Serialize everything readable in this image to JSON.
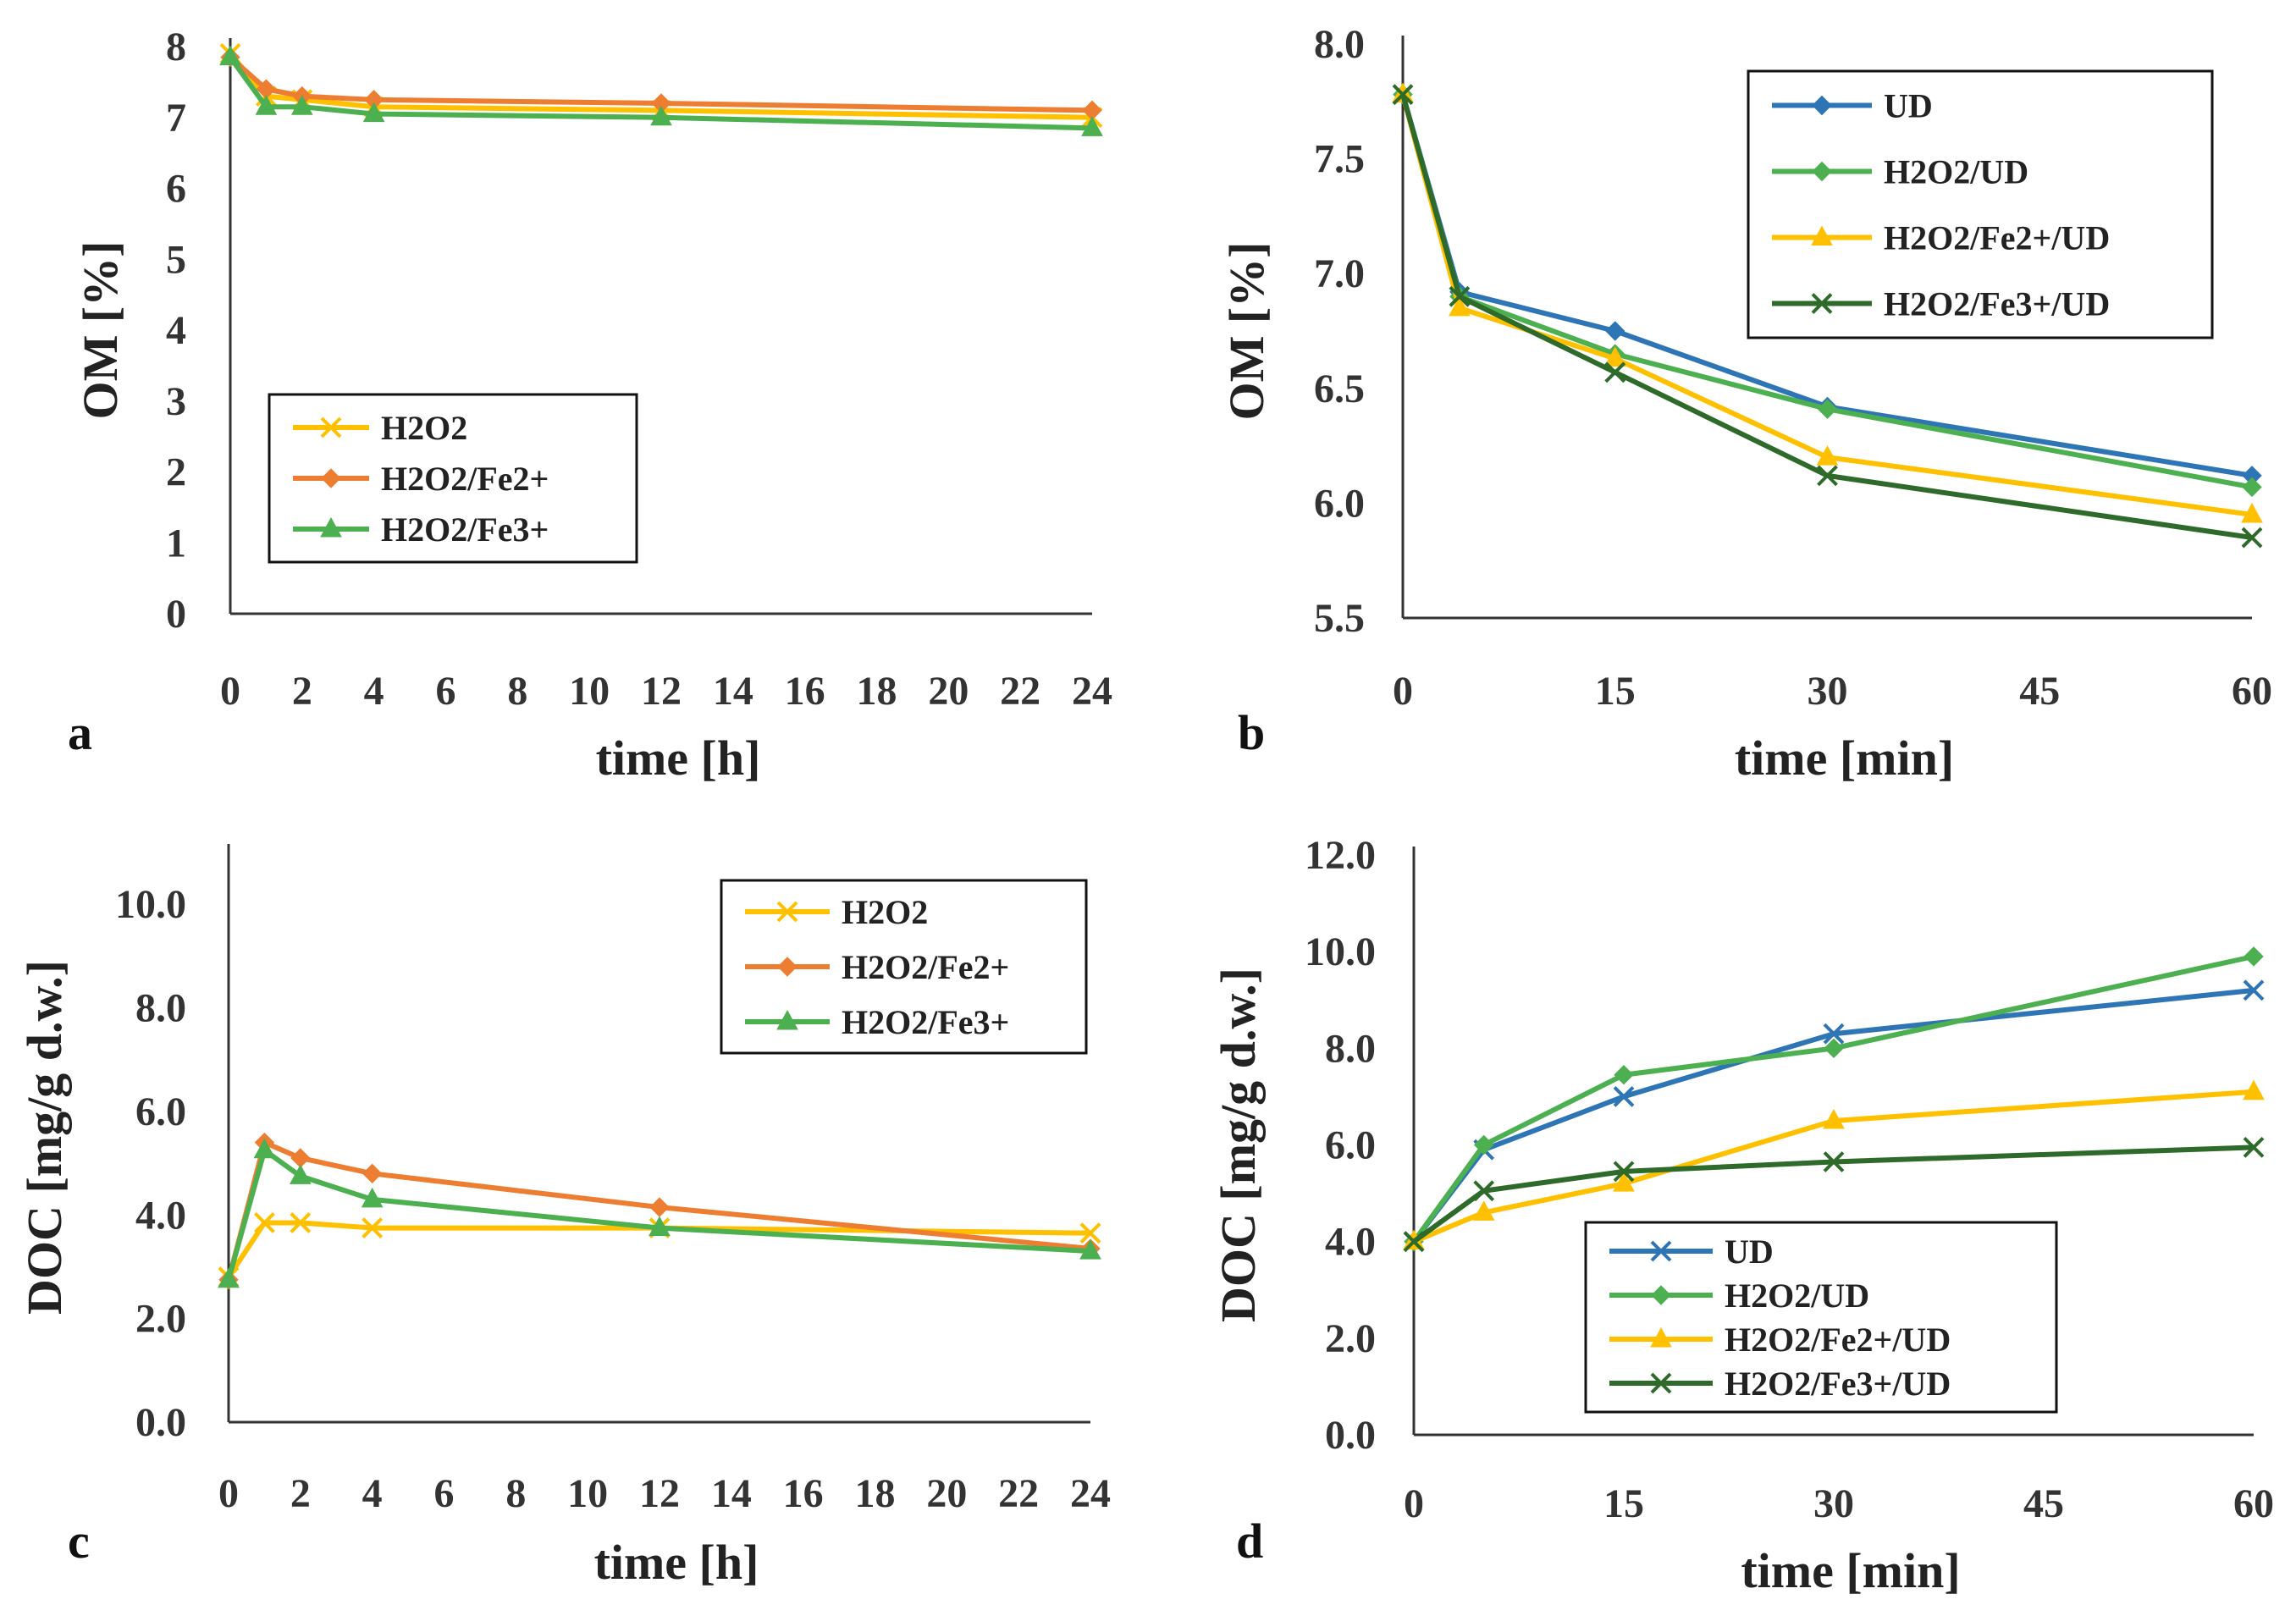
{
  "colors": {
    "H2O2": "#FFC000",
    "H2O2/Fe2+": "#ED7D31",
    "H2O2/Fe3+": "#4CAF50",
    "UD": "#2E75B6",
    "H2O2/UD": "#4CAF50",
    "H2O2/Fe2+/UD": "#FFC000",
    "H2O2/Fe3+/UD": "#2E6B2A"
  },
  "chart_data": [
    {
      "panel": "a",
      "type": "line",
      "xlabel": "time [h]",
      "ylabel": "OM [%]",
      "xlim": [
        0,
        24
      ],
      "ylim": [
        0,
        8
      ],
      "xticks": [
        "0",
        "2",
        "4",
        "6",
        "8",
        "10",
        "12",
        "14",
        "16",
        "18",
        "20",
        "22",
        "24"
      ],
      "yticks": [
        "0",
        "1",
        "2",
        "3",
        "4",
        "5",
        "6",
        "7",
        "8"
      ],
      "legend_position": "bottom-left",
      "x": [
        0,
        1,
        2,
        4,
        12,
        24
      ],
      "series": [
        {
          "name": "H2O2",
          "marker": "x",
          "values": [
            7.9,
            7.3,
            7.25,
            7.15,
            7.1,
            7.0
          ]
        },
        {
          "name": "H2O2/Fe2+",
          "marker": "diamond",
          "values": [
            7.85,
            7.4,
            7.3,
            7.25,
            7.2,
            7.1
          ]
        },
        {
          "name": "H2O2/Fe3+",
          "marker": "triangle",
          "values": [
            7.85,
            7.15,
            7.15,
            7.05,
            7.0,
            6.85
          ]
        }
      ]
    },
    {
      "panel": "b",
      "type": "line",
      "xlabel": "time [min]",
      "ylabel": "OM [%]",
      "xlim": [
        0,
        60
      ],
      "ylim": [
        5.5,
        8.0
      ],
      "xticks": [
        "0",
        "15",
        "30",
        "45",
        "60"
      ],
      "yticks": [
        "5.5",
        "6.0",
        "6.5",
        "7.0",
        "7.5",
        "8.0"
      ],
      "legend_position": "top-right",
      "x": [
        0,
        4,
        15,
        30,
        60
      ],
      "series": [
        {
          "name": "UD",
          "marker": "diamond",
          "values": [
            7.78,
            6.92,
            6.75,
            6.42,
            6.12
          ]
        },
        {
          "name": "H2O2/UD",
          "marker": "diamond",
          "values": [
            7.78,
            6.9,
            6.65,
            6.41,
            6.07
          ]
        },
        {
          "name": "H2O2/Fe2+/UD",
          "marker": "triangle",
          "values": [
            7.78,
            6.85,
            6.63,
            6.2,
            5.95
          ]
        },
        {
          "name": "H2O2/Fe3+/UD",
          "marker": "x",
          "values": [
            7.78,
            6.9,
            6.57,
            6.12,
            5.85
          ]
        }
      ]
    },
    {
      "panel": "c",
      "type": "line",
      "xlabel": "time [h]",
      "ylabel": "DOC [mg/g d.w.]",
      "xlim": [
        0,
        24
      ],
      "ylim": [
        0,
        11
      ],
      "xticks": [
        "0",
        "2",
        "4",
        "6",
        "8",
        "10",
        "12",
        "14",
        "16",
        "18",
        "20",
        "22",
        "24"
      ],
      "yticks": [
        "0.0",
        "2.0",
        "4.0",
        "6.0",
        "8.0",
        "10.0"
      ],
      "legend_position": "top-right",
      "x": [
        0,
        1,
        2,
        4,
        12,
        24
      ],
      "series": [
        {
          "name": "H2O2",
          "marker": "x",
          "values": [
            2.8,
            3.85,
            3.85,
            3.75,
            3.75,
            3.65
          ]
        },
        {
          "name": "H2O2/Fe2+",
          "marker": "diamond",
          "values": [
            2.75,
            5.4,
            5.1,
            4.8,
            4.15,
            3.35
          ]
        },
        {
          "name": "H2O2/Fe3+",
          "marker": "triangle",
          "values": [
            2.75,
            5.25,
            4.75,
            4.3,
            3.75,
            3.3
          ]
        }
      ]
    },
    {
      "panel": "d",
      "type": "line",
      "xlabel": "time [min]",
      "ylabel": "DOC [mg/g d.w.]",
      "xlim": [
        0,
        60
      ],
      "ylim": [
        0,
        12
      ],
      "xticks": [
        "0",
        "15",
        "30",
        "45",
        "60"
      ],
      "yticks": [
        "0.0",
        "2.0",
        "4.0",
        "6.0",
        "8.0",
        "10.0",
        "12.0"
      ],
      "legend_position": "bottom-center",
      "x": [
        0,
        5,
        15,
        30,
        60
      ],
      "series": [
        {
          "name": "UD",
          "marker": "x",
          "values": [
            4.0,
            5.9,
            7.0,
            8.3,
            9.2
          ]
        },
        {
          "name": "H2O2/UD",
          "marker": "diamond",
          "values": [
            4.0,
            6.0,
            7.45,
            8.0,
            9.9
          ]
        },
        {
          "name": "H2O2/Fe2+/UD",
          "marker": "triangle",
          "values": [
            4.0,
            4.6,
            5.2,
            6.5,
            7.1
          ]
        },
        {
          "name": "H2O2/Fe3+/UD",
          "marker": "x",
          "values": [
            4.0,
            5.05,
            5.45,
            5.65,
            5.95
          ]
        }
      ]
    }
  ]
}
